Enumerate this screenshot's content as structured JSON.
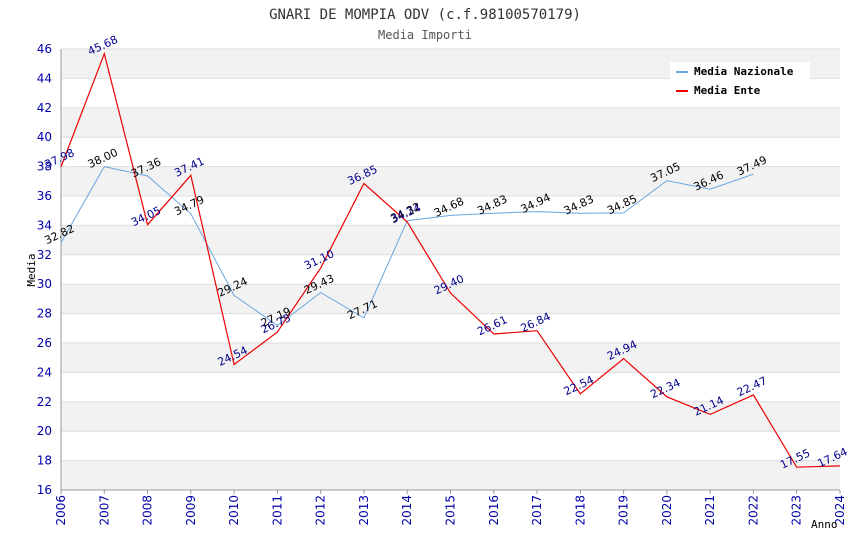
{
  "chart_data": {
    "type": "line",
    "title": "GNARI DE MOMPIA ODV (c.f.98100570179)",
    "subtitle": "Media Importi",
    "xlabel": "Anno",
    "ylabel": "Media",
    "ylim": [
      16,
      46
    ],
    "yticks": [
      "16",
      "18",
      "20",
      "22",
      "24",
      "26",
      "28",
      "30",
      "32",
      "34",
      "36",
      "38",
      "40",
      "42",
      "44",
      "46"
    ],
    "categories": [
      "2006",
      "2007",
      "2008",
      "2009",
      "2010",
      "2011",
      "2012",
      "2013",
      "2014",
      "2015",
      "2016",
      "2017",
      "2018",
      "2019",
      "2020",
      "2021",
      "2022",
      "2023",
      "2024"
    ],
    "grid": true,
    "legend_position": "top-right",
    "series": [
      {
        "name": "Media Nazionale",
        "color": "#6ca6e0",
        "values": [
          32.82,
          38.0,
          37.36,
          34.79,
          29.24,
          27.19,
          29.43,
          27.71,
          34.32,
          34.68,
          34.83,
          34.94,
          34.83,
          34.85,
          37.05,
          36.46,
          37.49,
          null,
          null
        ],
        "labels": [
          "32.82",
          "38.00",
          "37.36",
          "34.79",
          "29.24",
          "27.19",
          "29.43",
          "27.71",
          "34.32",
          "34.68",
          "34.83",
          "34.94",
          "34.83",
          "34.85",
          "37.05",
          "36.46",
          "37.49",
          "",
          ""
        ]
      },
      {
        "name": "Media Ente",
        "color": "#ee0000",
        "values": [
          37.98,
          45.68,
          34.05,
          37.41,
          24.54,
          26.75,
          31.1,
          36.85,
          34.24,
          29.4,
          26.61,
          26.84,
          22.54,
          24.94,
          22.34,
          21.14,
          22.47,
          17.55,
          17.64
        ],
        "labels": [
          "37.98",
          "45.68",
          "34.05",
          "37.41",
          "24.54",
          "26.75",
          "31.10",
          "36.85",
          "34.24",
          "29.40",
          "26.61",
          "26.84",
          "22.54",
          "24.94",
          "22.34",
          "21.14",
          "22.47",
          "17.55",
          "17.64"
        ]
      }
    ]
  }
}
